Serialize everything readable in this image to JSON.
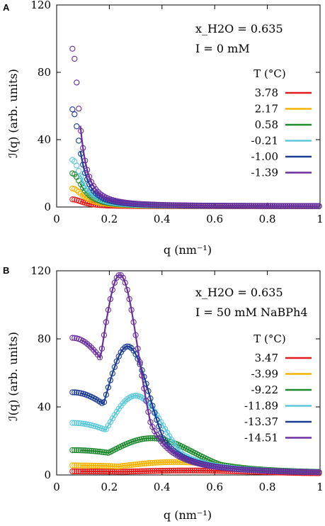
{
  "chart_data": [
    {
      "type": "scatter",
      "panel_label": "A",
      "xlabel": "q (nm⁻¹)",
      "ylabel": "ℐ(q) (arb. units)",
      "xlim": [
        0,
        1
      ],
      "ylim": [
        0,
        120
      ],
      "xticks": [
        0,
        0.2,
        0.4,
        0.6,
        0.8,
        1
      ],
      "xtick_labels": [
        "0",
        "0.2",
        "0.4",
        "0.6",
        "0.8",
        "1"
      ],
      "yticks": [
        0,
        40,
        80,
        120
      ],
      "ytick_labels": [
        "0",
        "40",
        "80",
        "120"
      ],
      "annotation_line1": "x_H2O = 0.635",
      "annotation_line2": "I = 0 mM",
      "legend_title": "T (°C)",
      "legend_placement": "right",
      "grid": false,
      "series": [
        {
          "name": "3.78",
          "color": "#e41a1c",
          "peak": {
            "q": 0.06,
            "y": 4.5
          },
          "decay": 0.12,
          "plateau": 0.4
        },
        {
          "name": "2.17",
          "color": "#f5b400",
          "peak": {
            "q": 0.06,
            "y": 11
          },
          "decay": 0.12,
          "plateau": 0.5
        },
        {
          "name": "0.58",
          "color": "#1e8a2e",
          "peak": {
            "q": 0.06,
            "y": 20
          },
          "decay": 0.11,
          "plateau": 0.5
        },
        {
          "name": "-0.21",
          "color": "#5cc8dc",
          "peak": {
            "q": 0.06,
            "y": 28
          },
          "decay": 0.105,
          "plateau": 0.5
        },
        {
          "name": "-1.00",
          "color": "#1a3c96",
          "peak": {
            "q": 0.06,
            "y": 58
          },
          "decay": 0.085,
          "plateau": 0.5
        },
        {
          "name": "-1.39",
          "color": "#6b2fa0",
          "peak": {
            "q": 0.06,
            "y": 94
          },
          "decay": 0.075,
          "plateau": 0.5
        }
      ]
    },
    {
      "type": "scatter",
      "panel_label": "B",
      "xlabel": "q (nm⁻¹)",
      "ylabel": "ℐ(q) (arb. units)",
      "xlim": [
        0,
        1
      ],
      "ylim": [
        0,
        120
      ],
      "xticks": [
        0,
        0.2,
        0.4,
        0.6,
        0.8,
        1
      ],
      "xtick_labels": [
        "0",
        "0.2",
        "0.4",
        "0.6",
        "0.8",
        "1"
      ],
      "yticks": [
        0,
        40,
        80,
        120
      ],
      "ytick_labels": [
        "0",
        "40",
        "80",
        "120"
      ],
      "annotation_line1": "x_H2O = 0.635",
      "annotation_line2": "I = 50 mM NaBPh4",
      "legend_title": "T (°C)",
      "legend_placement": "right",
      "grid": false,
      "series": [
        {
          "name": "3.47",
          "color": "#e41a1c",
          "peak": {
            "q": 0.5,
            "y": 2
          },
          "low_q_value": 1.5,
          "width": 0.3
        },
        {
          "name": "-3.99",
          "color": "#f5b400",
          "peak": {
            "q": 0.45,
            "y": 7
          },
          "low_q_value": 5,
          "width": 0.25
        },
        {
          "name": "-9.22",
          "color": "#1e8a2e",
          "peak": {
            "q": 0.36,
            "y": 21
          },
          "low_q_value": 14,
          "width": 0.18
        },
        {
          "name": "-11.89",
          "color": "#5cc8dc",
          "peak": {
            "q": 0.3,
            "y": 46
          },
          "low_q_value": 30,
          "width": 0.12
        },
        {
          "name": "-13.37",
          "color": "#1a3c96",
          "peak": {
            "q": 0.27,
            "y": 75
          },
          "low_q_value": 48,
          "width": 0.095
        },
        {
          "name": "-14.51",
          "color": "#6b2fa0",
          "peak": {
            "q": 0.24,
            "y": 117
          },
          "low_q_value": 80,
          "width": 0.08
        }
      ]
    }
  ]
}
